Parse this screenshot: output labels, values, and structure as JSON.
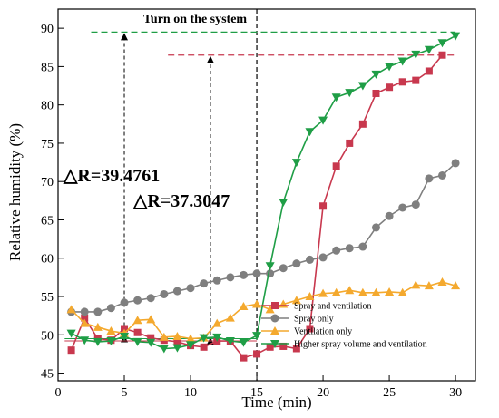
{
  "chart_data": {
    "type": "line",
    "xlabel": "Time (min)",
    "ylabel": "Relative humidity (%)",
    "xlim": [
      0,
      31.5
    ],
    "ylim": [
      44,
      92.5
    ],
    "xticks": [
      0,
      5,
      10,
      15,
      20,
      25,
      30
    ],
    "yticks": [
      45,
      50,
      55,
      60,
      65,
      70,
      75,
      80,
      85,
      90
    ],
    "grid": false,
    "legend_position": "bottom-right",
    "x": [
      1,
      2,
      3,
      4,
      5,
      6,
      7,
      8,
      9,
      10,
      11,
      12,
      13,
      14,
      15,
      16,
      17,
      18,
      19,
      20,
      21,
      22,
      23,
      24,
      25,
      26,
      27,
      28,
      29,
      30
    ],
    "series": [
      {
        "name": "Spray and ventilation",
        "color": "#c8384e",
        "marker": "square",
        "values": [
          48,
          52.2,
          49.5,
          49.3,
          50.8,
          50.3,
          49.6,
          49.3,
          49.1,
          48.6,
          48.4,
          49.2,
          49.2,
          47,
          47.5,
          48.4,
          48.5,
          48.2,
          50.8,
          66.8,
          72,
          75,
          77.5,
          81.5,
          82.3,
          83,
          83.2,
          84.4,
          86.5,
          null
        ]
      },
      {
        "name": "Spray only",
        "color": "#7f7f7f",
        "marker": "circle",
        "values": [
          53,
          53,
          53,
          53.5,
          54.2,
          54.5,
          54.8,
          55.3,
          55.7,
          56.1,
          56.7,
          57.1,
          57.5,
          57.8,
          58,
          58,
          58.7,
          59.3,
          59.8,
          60.1,
          61,
          61.3,
          61.5,
          64,
          65.5,
          66.6,
          67,
          70.4,
          70.8,
          72.4
        ]
      },
      {
        "name": "Ventilation only",
        "color": "#f4a92e",
        "marker": "triangle-up",
        "values": [
          53.3,
          51.5,
          51,
          50.5,
          50.2,
          51.9,
          52,
          49.7,
          49.8,
          49.5,
          49.6,
          51.5,
          52.2,
          53.7,
          54,
          53.3,
          54,
          54.5,
          55,
          55.4,
          55.5,
          55.8,
          55.5,
          55.5,
          55.6,
          55.5,
          56.5,
          56.4,
          56.9,
          56.4
        ]
      },
      {
        "name": "Higher spray volume and ventilation",
        "color": "#1f9e46",
        "marker": "triangle-down",
        "values": [
          50.2,
          49.3,
          49.1,
          49.2,
          49.8,
          49.1,
          49,
          48.2,
          48.3,
          48.7,
          49.6,
          49.7,
          49.2,
          49,
          49.9,
          59,
          67.3,
          72.5,
          76.5,
          78,
          81,
          81.6,
          82.5,
          84,
          85,
          85.7,
          86.6,
          87.2,
          88.1,
          89
        ]
      }
    ],
    "annotations": {
      "system_on_label": "Turn on the system",
      "system_on_time": 15,
      "delta_r1_label": "△R=39.4761",
      "delta_r1": {
        "x": 5,
        "from": 49.5,
        "to": 89.5
      },
      "delta_r2_label": "△R=37.3047",
      "delta_r2": {
        "x": 11.5,
        "from": 49.2,
        "to": 86.5
      }
    }
  }
}
